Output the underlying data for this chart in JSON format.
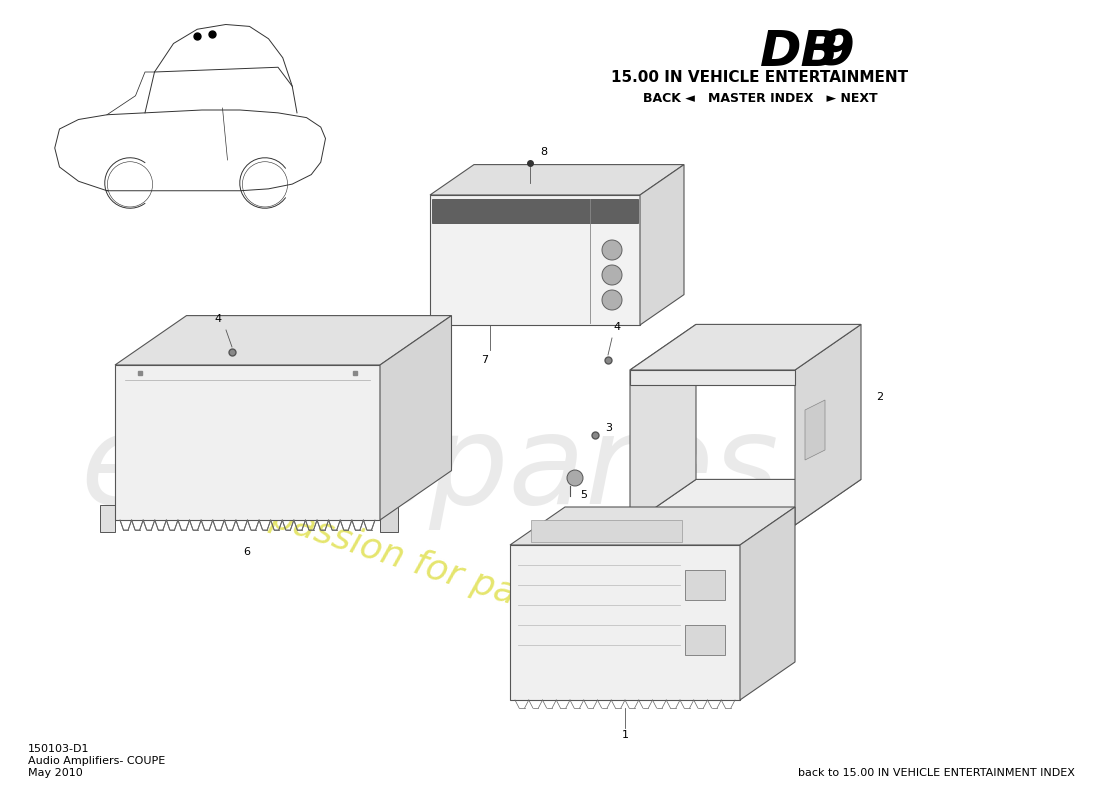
{
  "title_model": "DB 9",
  "title_section": "15.00 IN VEHICLE ENTERTAINMENT",
  "title_nav": "BACK ◄   MASTER INDEX   ► NEXT",
  "footer_code": "150103-D1",
  "footer_desc": "Audio Amplifiers- COUPE",
  "footer_date": "May 2010",
  "footer_back": "back to 15.00 IN VEHICLE ENTERTAINMENT INDEX",
  "bg_color": "#ffffff",
  "watermark_color": "#d0d0d0",
  "slogan_color": "#e8e840",
  "line_color": "#555555",
  "face_color": "#f0f0f0",
  "dark_face": "#d8d8d8",
  "darker_face": "#c0c0c0"
}
